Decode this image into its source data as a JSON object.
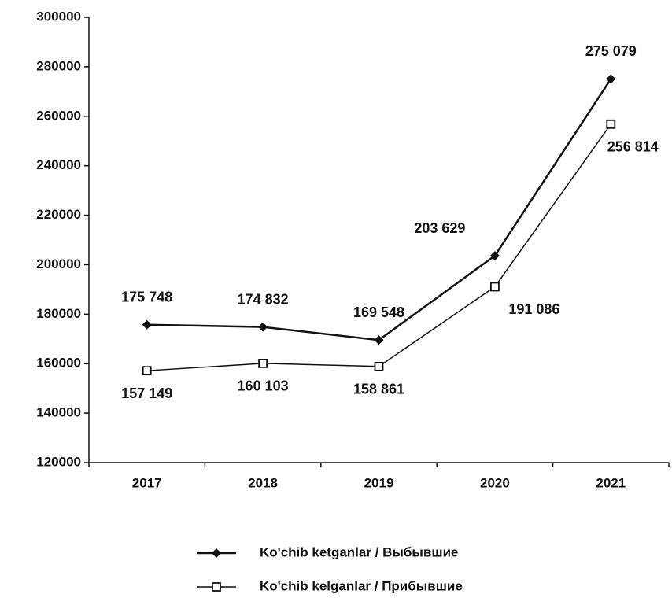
{
  "chart_data": {
    "type": "line",
    "categories": [
      "2017",
      "2018",
      "2019",
      "2020",
      "2021"
    ],
    "series": [
      {
        "name": "Ko'chib ketganlar / Выбывшие",
        "color": "#111111",
        "marker": "diamond",
        "values": [
          175748,
          174832,
          169548,
          203629,
          275079
        ],
        "value_labels": [
          "175 748",
          "174 832",
          "169 548",
          "203 629",
          "275 079"
        ]
      },
      {
        "name": "Ko'chib kelganlar / Прибывшие",
        "color": "#111111",
        "marker": "square",
        "values": [
          157149,
          160103,
          158861,
          191086,
          256814
        ],
        "value_labels": [
          "157 149",
          "160 103",
          "158 861",
          "191 086",
          "256 814"
        ]
      }
    ],
    "ylim": [
      120000,
      300000
    ],
    "yticks": [
      120000,
      140000,
      160000,
      180000,
      200000,
      220000,
      240000,
      260000,
      280000,
      300000
    ],
    "grid": false,
    "legend": "bottom"
  }
}
